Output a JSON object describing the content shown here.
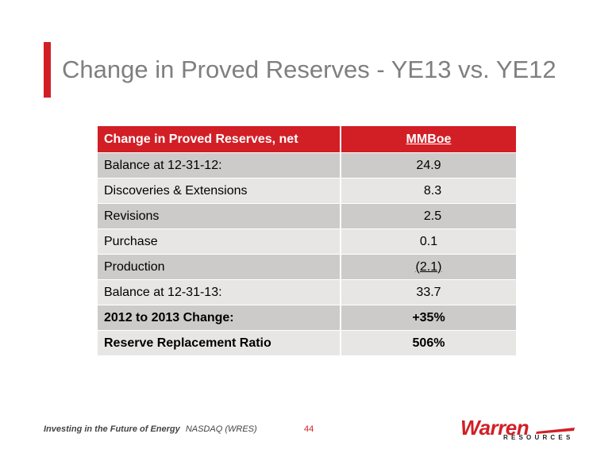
{
  "slide": {
    "title": "Change in Proved Reserves - YE13 vs. YE12"
  },
  "table": {
    "header": {
      "label": "Change in Proved Reserves, net",
      "unit": "MMBoe"
    },
    "rows": [
      {
        "label": "Balance at 12-31-12:",
        "value": "24.9"
      },
      {
        "label": "Discoveries & Extensions",
        "value": "8.3"
      },
      {
        "label": "Revisions",
        "value": "2.5"
      },
      {
        "label": "Purchase",
        "value": "0.1"
      },
      {
        "label": "Production",
        "value": "(2.1)"
      },
      {
        "label": "Balance at 12-31-13:",
        "value": "33.7"
      },
      {
        "label": "2012 to 2013 Change:",
        "value": "+35%"
      },
      {
        "label": "Reserve Replacement Ratio",
        "value": "506%"
      }
    ]
  },
  "footer": {
    "tagline": "Investing in the Future of Energy",
    "ticker": "NASDAQ (WRES)",
    "page_number": "44",
    "logo_name": "Warren",
    "logo_sub": "RESOURCES"
  },
  "colors": {
    "accent": "#d21f26",
    "title_text": "#7f7f7f",
    "row_dark": "#cdcbc9",
    "row_light": "#e8e6e5"
  }
}
